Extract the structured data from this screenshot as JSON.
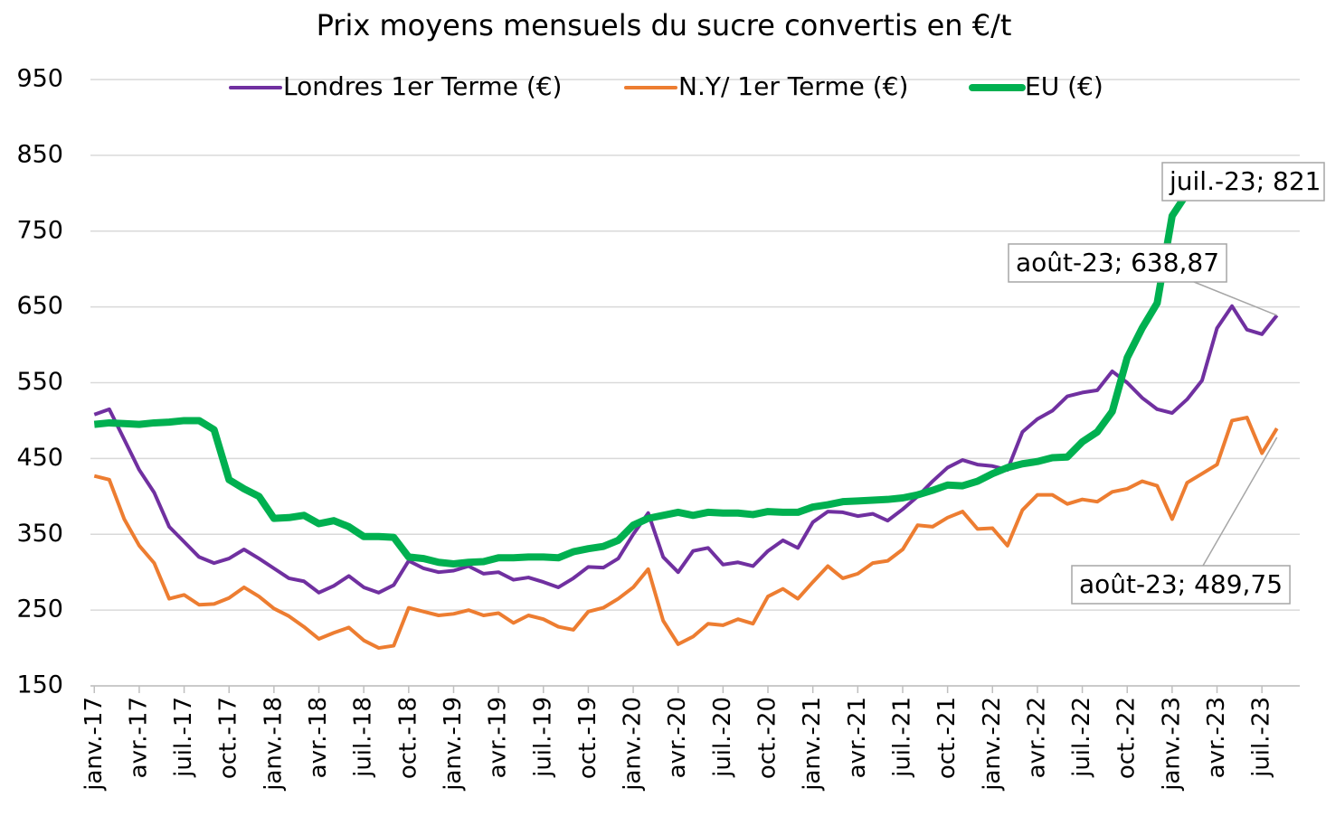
{
  "chart_data": {
    "type": "line",
    "title": "Prix moyens mensuels du sucre convertis en €/t",
    "categories": [
      "janv.-17",
      null,
      null,
      "avr.-17",
      null,
      null,
      "juil.-17",
      null,
      null,
      "oct.-17",
      null,
      null,
      "janv.-18",
      null,
      null,
      "avr.-18",
      null,
      null,
      "juil.-18",
      null,
      null,
      "oct.-18",
      null,
      null,
      "janv.-19",
      null,
      null,
      "avr.-19",
      null,
      null,
      "juil.-19",
      null,
      null,
      "oct.-19",
      null,
      null,
      "janv.-20",
      null,
      null,
      "avr.-20",
      null,
      null,
      "juil.-20",
      null,
      null,
      "oct.-20",
      null,
      null,
      "janv.-21",
      null,
      null,
      "avr.-21",
      null,
      null,
      "juil.-21",
      null,
      null,
      "oct.-21",
      null,
      null,
      "janv.-22",
      null,
      null,
      "avr.-22",
      null,
      null,
      "juil.-22",
      null,
      null,
      "oct.-22",
      null,
      null,
      "janv.-23",
      null,
      null,
      "avr.-23",
      null,
      null,
      "juil.-23",
      null
    ],
    "series": [
      {
        "name": "Londres 1er Terme (€)",
        "color": "#7030a0",
        "width": 4,
        "values": [
          508,
          515,
          475,
          435,
          405,
          360,
          340,
          320,
          312,
          318,
          330,
          318,
          305,
          292,
          288,
          273,
          282,
          295,
          280,
          273,
          283,
          315,
          305,
          300,
          302,
          308,
          298,
          300,
          290,
          293,
          287,
          280,
          292,
          307,
          306,
          318,
          350,
          378,
          320,
          300,
          328,
          332,
          310,
          313,
          308,
          328,
          342,
          332,
          366,
          380,
          379,
          374,
          377,
          368,
          383,
          400,
          420,
          438,
          448,
          442,
          440,
          435,
          485,
          502,
          513,
          532,
          537,
          540,
          565,
          550,
          530,
          515,
          510,
          528,
          553,
          622,
          651,
          620,
          614,
          638.87
        ],
        "value_labels": [
          null,
          null,
          null,
          null,
          null,
          null,
          null,
          null,
          null,
          null,
          null,
          null,
          null,
          null,
          null,
          null,
          null,
          null,
          null,
          null,
          null,
          null,
          null,
          null,
          null,
          null,
          null,
          null,
          null,
          null,
          null,
          null,
          null,
          null,
          null,
          null,
          null,
          null,
          null,
          null,
          null,
          null,
          null,
          null,
          null,
          null,
          null,
          null,
          null,
          null,
          null,
          null,
          null,
          null,
          null,
          null,
          null,
          null,
          null,
          null,
          null,
          null,
          null,
          null,
          null,
          null,
          null,
          null,
          null,
          null,
          null,
          null,
          null,
          null,
          null,
          null,
          null,
          null,
          null,
          "août-23; 638,87"
        ]
      },
      {
        "name": "N.Y/ 1er Terme (€)",
        "color": "#ed7d31",
        "width": 4,
        "values": [
          427,
          422,
          370,
          335,
          312,
          265,
          270,
          257,
          258,
          266,
          280,
          268,
          252,
          242,
          228,
          212,
          220,
          227,
          210,
          200,
          203,
          253,
          248,
          243,
          245,
          250,
          243,
          246,
          233,
          243,
          238,
          228,
          224,
          248,
          253,
          265,
          280,
          304,
          236,
          205,
          215,
          232,
          230,
          238,
          232,
          268,
          278,
          265,
          287,
          308,
          292,
          298,
          312,
          315,
          330,
          362,
          360,
          372,
          380,
          357,
          358,
          335,
          382,
          402,
          402,
          390,
          396,
          393,
          406,
          410,
          420,
          414,
          370,
          418,
          430,
          442,
          500,
          504,
          457,
          489.75
        ],
        "value_labels": [
          null,
          null,
          null,
          null,
          null,
          null,
          null,
          null,
          null,
          null,
          null,
          null,
          null,
          null,
          null,
          null,
          null,
          null,
          null,
          null,
          null,
          null,
          null,
          null,
          null,
          null,
          null,
          null,
          null,
          null,
          null,
          null,
          null,
          null,
          null,
          null,
          null,
          null,
          null,
          null,
          null,
          null,
          null,
          null,
          null,
          null,
          null,
          null,
          null,
          null,
          null,
          null,
          null,
          null,
          null,
          null,
          null,
          null,
          null,
          null,
          null,
          null,
          null,
          null,
          null,
          null,
          null,
          null,
          null,
          null,
          null,
          null,
          null,
          null,
          null,
          null,
          null,
          null,
          null,
          "août-23; 489,75"
        ]
      },
      {
        "name": "EU (€)",
        "color": "#00b050",
        "width": 8,
        "values": [
          495,
          497,
          496,
          495,
          497,
          498,
          500,
          500,
          488,
          422,
          410,
          400,
          371,
          372,
          375,
          364,
          368,
          360,
          347,
          347,
          346,
          320,
          318,
          313,
          311,
          313,
          314,
          319,
          319,
          320,
          320,
          319,
          327,
          331,
          334,
          342,
          362,
          371,
          375,
          379,
          375,
          379,
          378,
          378,
          376,
          380,
          379,
          379,
          386,
          389,
          393,
          394,
          395,
          396,
          398,
          402,
          408,
          415,
          414,
          420,
          430,
          438,
          443,
          446,
          451,
          452,
          472,
          485,
          512,
          583,
          622,
          655,
          770,
          800,
          812,
          818,
          823,
          819,
          821,
          null
        ],
        "value_labels": [
          null,
          null,
          null,
          null,
          null,
          null,
          null,
          null,
          null,
          null,
          null,
          null,
          null,
          null,
          null,
          null,
          null,
          null,
          null,
          null,
          null,
          null,
          null,
          null,
          null,
          null,
          null,
          null,
          null,
          null,
          null,
          null,
          null,
          null,
          null,
          null,
          null,
          null,
          null,
          null,
          null,
          null,
          null,
          null,
          null,
          null,
          null,
          null,
          null,
          null,
          null,
          null,
          null,
          null,
          null,
          null,
          null,
          null,
          null,
          null,
          null,
          null,
          null,
          null,
          null,
          null,
          null,
          null,
          null,
          null,
          null,
          null,
          null,
          null,
          null,
          null,
          null,
          null,
          "juil.-23; 821",
          null
        ]
      }
    ],
    "ylim": [
      150,
      950
    ],
    "yticks": [
      150,
      250,
      350,
      450,
      550,
      650,
      750,
      850,
      950
    ],
    "grid": true,
    "legend": "top"
  }
}
